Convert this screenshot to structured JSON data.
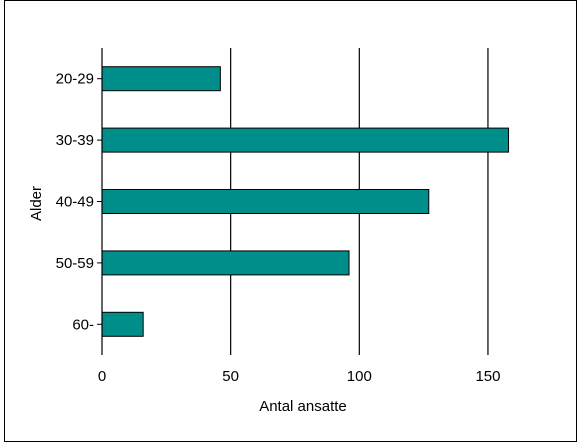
{
  "chart_data": {
    "type": "bar",
    "orientation": "horizontal",
    "categories": [
      "20-29",
      "30-39",
      "40-49",
      "50-59",
      "60-"
    ],
    "values": [
      46,
      158,
      127,
      96,
      16
    ],
    "xlabel": "Antal ansatte",
    "ylabel": "Alder",
    "xlim": [
      0,
      178
    ],
    "xticks": [
      0,
      50,
      100,
      150
    ],
    "grid": "vertical",
    "bar_color": "#008e8a",
    "bar_edge_color": "#000000"
  }
}
